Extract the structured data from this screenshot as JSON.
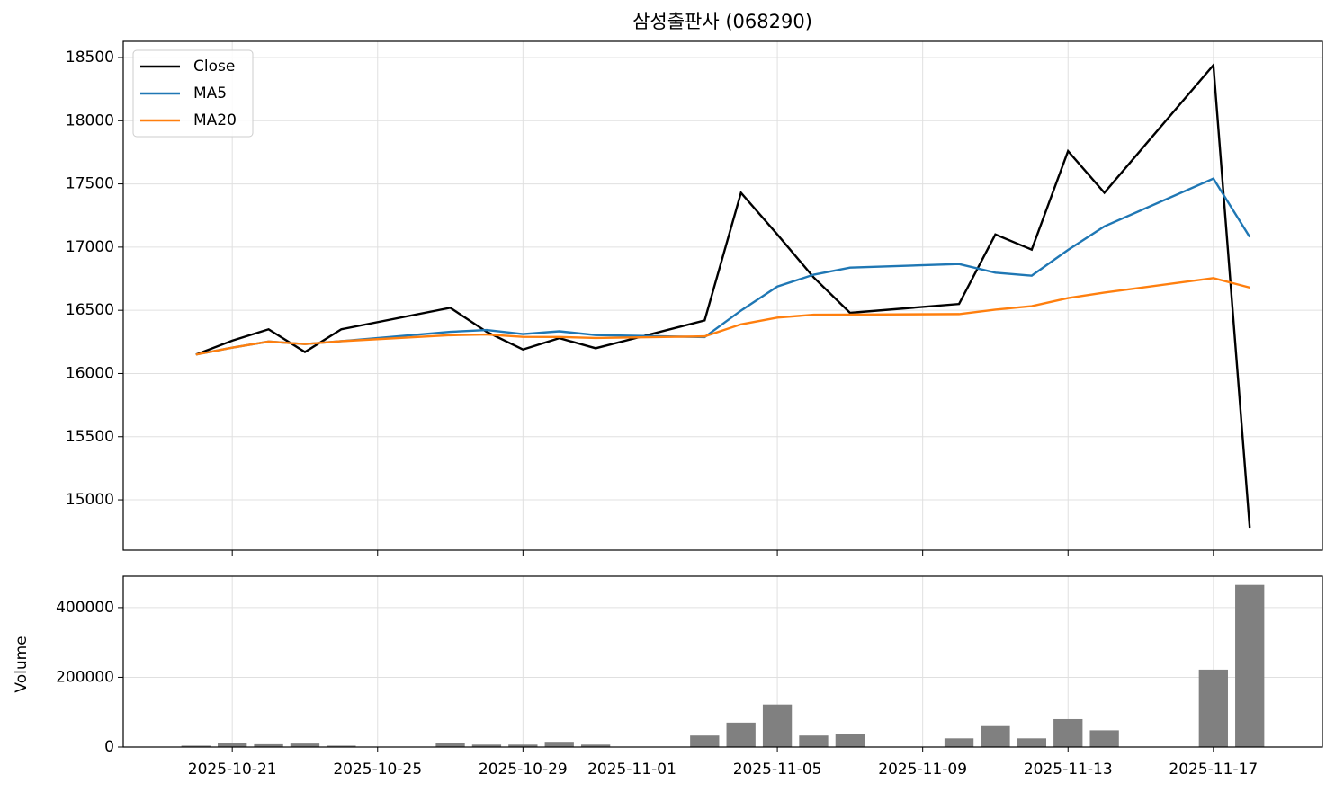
{
  "chart_data": [
    {
      "type": "line",
      "title": "삼성출판사 (068290)",
      "x": [
        "2025-10-20",
        "2025-10-21",
        "2025-10-22",
        "2025-10-23",
        "2025-10-24",
        "2025-10-27",
        "2025-10-28",
        "2025-10-29",
        "2025-10-30",
        "2025-10-31",
        "2025-11-03",
        "2025-11-04",
        "2025-11-05",
        "2025-11-06",
        "2025-11-07",
        "2025-11-10",
        "2025-11-11",
        "2025-11-12",
        "2025-11-13",
        "2025-11-14",
        "2025-11-17",
        "2025-11-18"
      ],
      "series": [
        {
          "name": "Close",
          "color": "#000000",
          "values": [
            16150,
            16260,
            16350,
            16170,
            16350,
            16520,
            16330,
            16190,
            16280,
            16200,
            16420,
            17430,
            17100,
            16760,
            16480,
            16550,
            17100,
            16980,
            17760,
            17430,
            18440,
            14780
          ]
        },
        {
          "name": "MA5",
          "color": "#1f77b4",
          "values": [
            16150,
            16205,
            16253,
            16233,
            16256,
            16330,
            16344,
            16312,
            16334,
            16304,
            16288,
            16498,
            16688,
            16782,
            16838,
            16866,
            16798,
            16774,
            16978,
            17164,
            17542,
            17080
          ]
        },
        {
          "name": "MA20",
          "color": "#ff7f0e",
          "values": [
            16150,
            16205,
            16253,
            16233,
            16256,
            16303,
            16309,
            16290,
            16289,
            16281,
            16294,
            16389,
            16442,
            16465,
            16466,
            16470,
            16505,
            16533,
            16597,
            16640,
            16755,
            16680
          ]
        }
      ],
      "xlim": [
        "2025-10-18",
        "2025-11-20"
      ],
      "ylim": [
        14602,
        18628
      ],
      "yticks": [
        15000,
        15500,
        16000,
        16500,
        17000,
        17500,
        18000,
        18500
      ],
      "grid": true,
      "legend": "upper-left"
    },
    {
      "type": "bar",
      "ylabel": "Volume",
      "color": "#808080",
      "x": [
        "2025-10-20",
        "2025-10-21",
        "2025-10-22",
        "2025-10-23",
        "2025-10-24",
        "2025-10-27",
        "2025-10-28",
        "2025-10-29",
        "2025-10-30",
        "2025-10-31",
        "2025-11-03",
        "2025-11-04",
        "2025-11-05",
        "2025-11-06",
        "2025-11-07",
        "2025-11-10",
        "2025-11-11",
        "2025-11-12",
        "2025-11-13",
        "2025-11-14",
        "2025-11-17",
        "2025-11-18"
      ],
      "values": [
        4000,
        12000,
        8000,
        10000,
        4000,
        12000,
        7000,
        7000,
        15000,
        7000,
        33000,
        70000,
        122000,
        33000,
        38000,
        25000,
        60000,
        25000,
        80000,
        48000,
        222000,
        465000
      ],
      "xlim": [
        "2025-10-18",
        "2025-11-20"
      ],
      "xticks": [
        "2025-10-21",
        "2025-10-25",
        "2025-10-29",
        "2025-11-01",
        "2025-11-05",
        "2025-11-09",
        "2025-11-13",
        "2025-11-17"
      ],
      "ylim": [
        0,
        490000
      ],
      "yticks": [
        0,
        200000,
        400000
      ],
      "grid": true
    }
  ]
}
